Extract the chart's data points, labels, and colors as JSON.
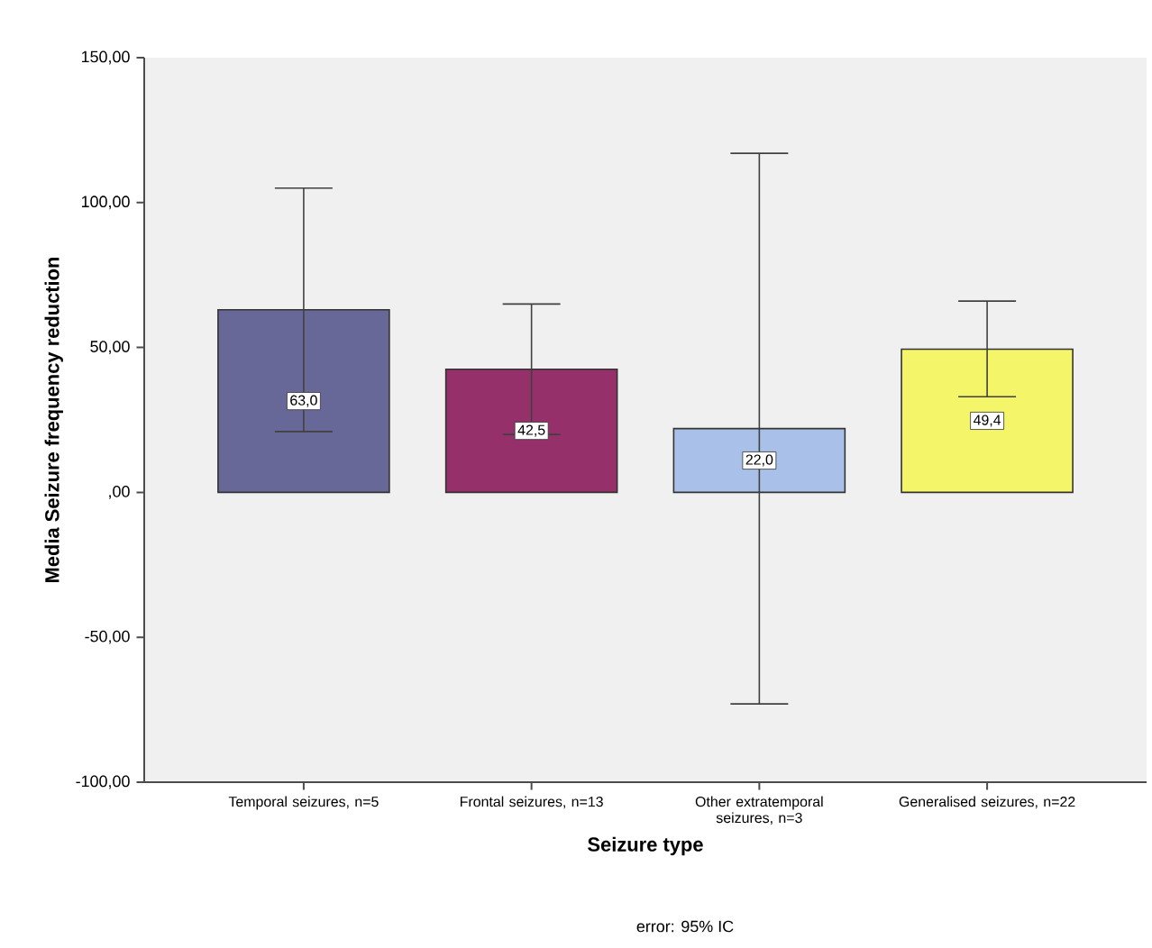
{
  "chart_data": {
    "type": "bar",
    "xlabel": "Seizure type",
    "ylabel": "Media Seizure frequency reduction",
    "categories": [
      "Temporal seizures, n=5",
      "Frontal seizures, n=13",
      "Other extratemporal seizures, n=3",
      "Generalised seizures, n=22"
    ],
    "values": [
      63.0,
      42.5,
      22.0,
      49.4
    ],
    "value_labels": [
      "63,0",
      "42,5",
      "22,0",
      "49,4"
    ],
    "colors": [
      "#686898",
      "#95306a",
      "#a9c1e8",
      "#f5f56a"
    ],
    "errors": [
      [
        21,
        105
      ],
      [
        20,
        65
      ],
      [
        -73,
        117
      ],
      [
        33,
        66
      ]
    ],
    "ylim": [
      -100,
      150
    ],
    "yticks": [
      {
        "value": -100,
        "label": "-100,00"
      },
      {
        "value": -50,
        "label": "-50,00"
      },
      {
        "value": 0,
        "label": ",00"
      },
      {
        "value": 50,
        "label": "50,00"
      },
      {
        "value": 100,
        "label": "100,00"
      },
      {
        "value": 150,
        "label": "150,00"
      }
    ],
    "annotations": [
      "error: 95% IC"
    ],
    "grid": false
  }
}
